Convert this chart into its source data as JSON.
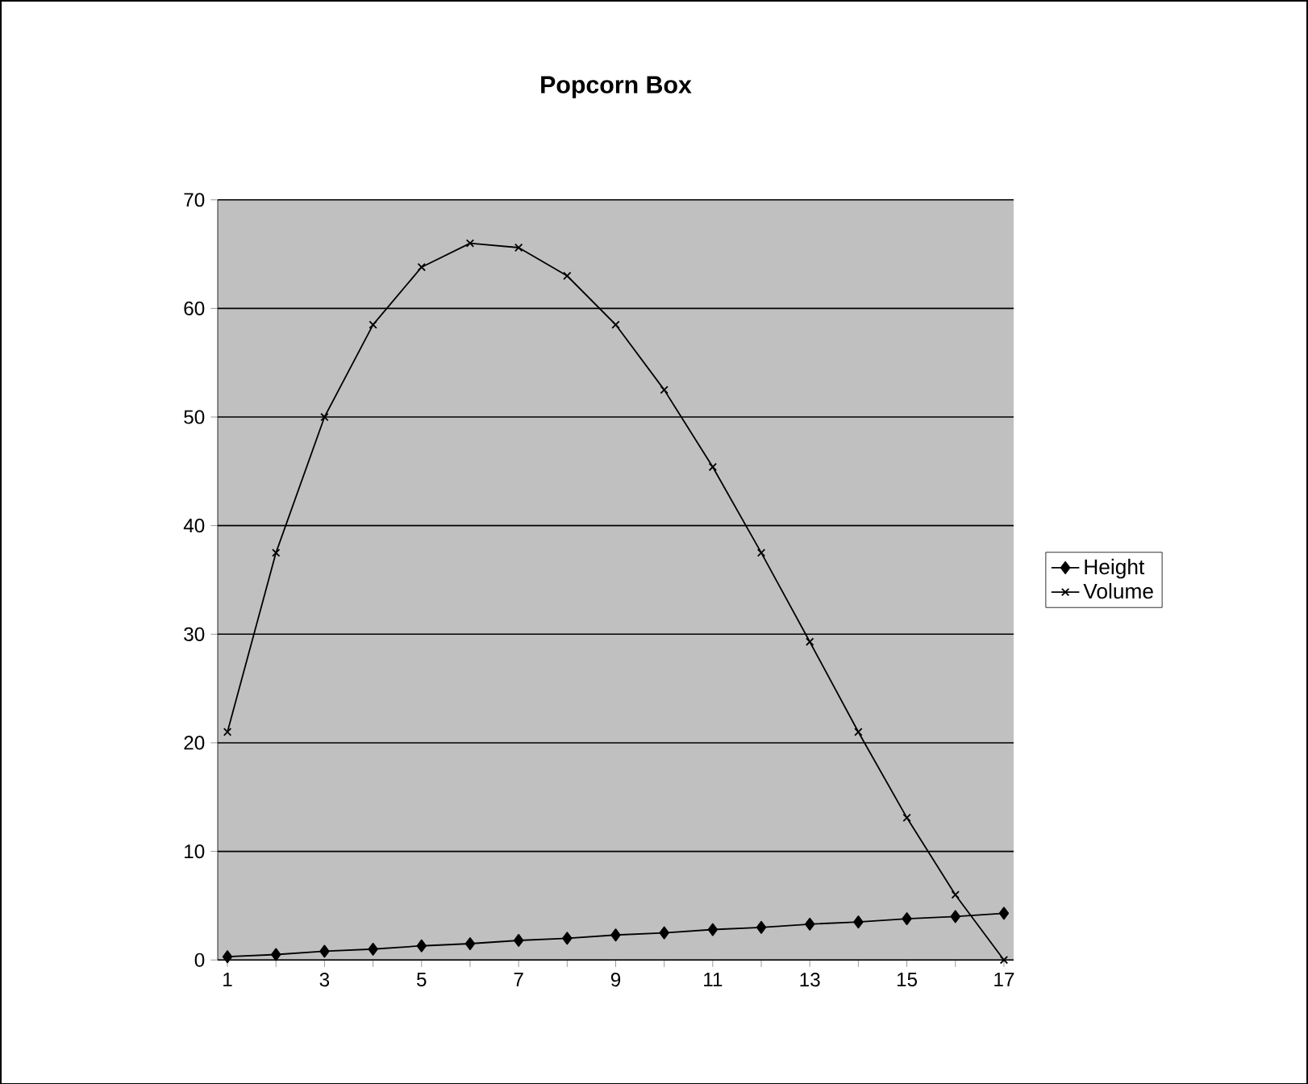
{
  "chart_data": {
    "type": "line",
    "title": "Popcorn Box",
    "categories": [
      "1",
      null,
      "3",
      null,
      "5",
      null,
      "7",
      null,
      "9",
      null,
      "11",
      null,
      "13",
      null,
      "15",
      null,
      "17"
    ],
    "series": [
      {
        "name": "Height",
        "color": "#000000",
        "marker": "diamond",
        "values": [
          0.3,
          0.5,
          0.8,
          1,
          1.3,
          1.5,
          1.8,
          2,
          2.3,
          2.5,
          2.8,
          3,
          3.3,
          3.5,
          3.8,
          4,
          4.3
        ]
      },
      {
        "name": "Volume",
        "color": "#000000",
        "marker": "cross",
        "values": [
          21,
          37.5,
          50,
          58.5,
          63.8,
          66,
          65.6,
          63,
          58.5,
          52.5,
          45.4,
          37.5,
          29.3,
          21,
          13.1,
          6,
          0
        ]
      }
    ],
    "ylim": [
      0,
      70
    ],
    "yticks": [
      0,
      10,
      20,
      30,
      40,
      50,
      60,
      70
    ],
    "grid": "y",
    "legend": "right",
    "line_style": "solid"
  }
}
